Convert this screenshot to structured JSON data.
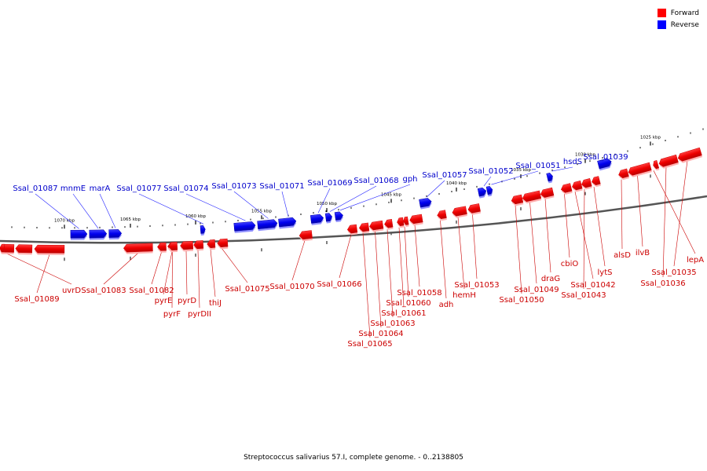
{
  "legend": {
    "forward_label": "Forward",
    "reverse_label": "Reverse",
    "forward_color": "#ff0000",
    "reverse_color": "#0000ff"
  },
  "caption": "Streptococcus salivarius 57.I, complete genome. - 0..2138805",
  "scale_labels": [
    "1070 kbp",
    "1065 kbp",
    "1060 kbp",
    "1055 kbp",
    "1050 kbp",
    "1045 kbp",
    "1040 kbp",
    "1035 kbp",
    "1030 kbp",
    "1025 kbp"
  ],
  "reverse_genes": [
    "Ssal_01087",
    "mnmE",
    "marA",
    "Ssal_01077",
    "Ssal_01074",
    "Ssal_01073",
    "Ssal_01071",
    "Ssal_01069",
    "Ssal_01068",
    "gph",
    "Ssal_01057",
    "Ssal_01052",
    "Ssal_01051",
    "hsdS",
    "Ssal_01039"
  ],
  "forward_genes": [
    "Ssal_01089",
    "uvrD",
    "Ssal_01083",
    "Ssal_01082",
    "pyrE",
    "pyrF",
    "pyrD",
    "pyrDII",
    "thiJ",
    "Ssal_01075",
    "Ssal_01070",
    "Ssal_01066",
    "Ssal_01065",
    "Ssal_01064",
    "Ssal_01063",
    "Ssal_01061",
    "Ssal_01060",
    "Ssal_01058",
    "adh",
    "hemH",
    "Ssal_01053",
    "Ssal_01050",
    "Ssal_01049",
    "draG",
    "cbiO",
    "Ssal_01043",
    "Ssal_01042",
    "lytS",
    "alsD",
    "ilvB",
    "Ssal_01036",
    "Ssal_01035",
    "lepA"
  ]
}
